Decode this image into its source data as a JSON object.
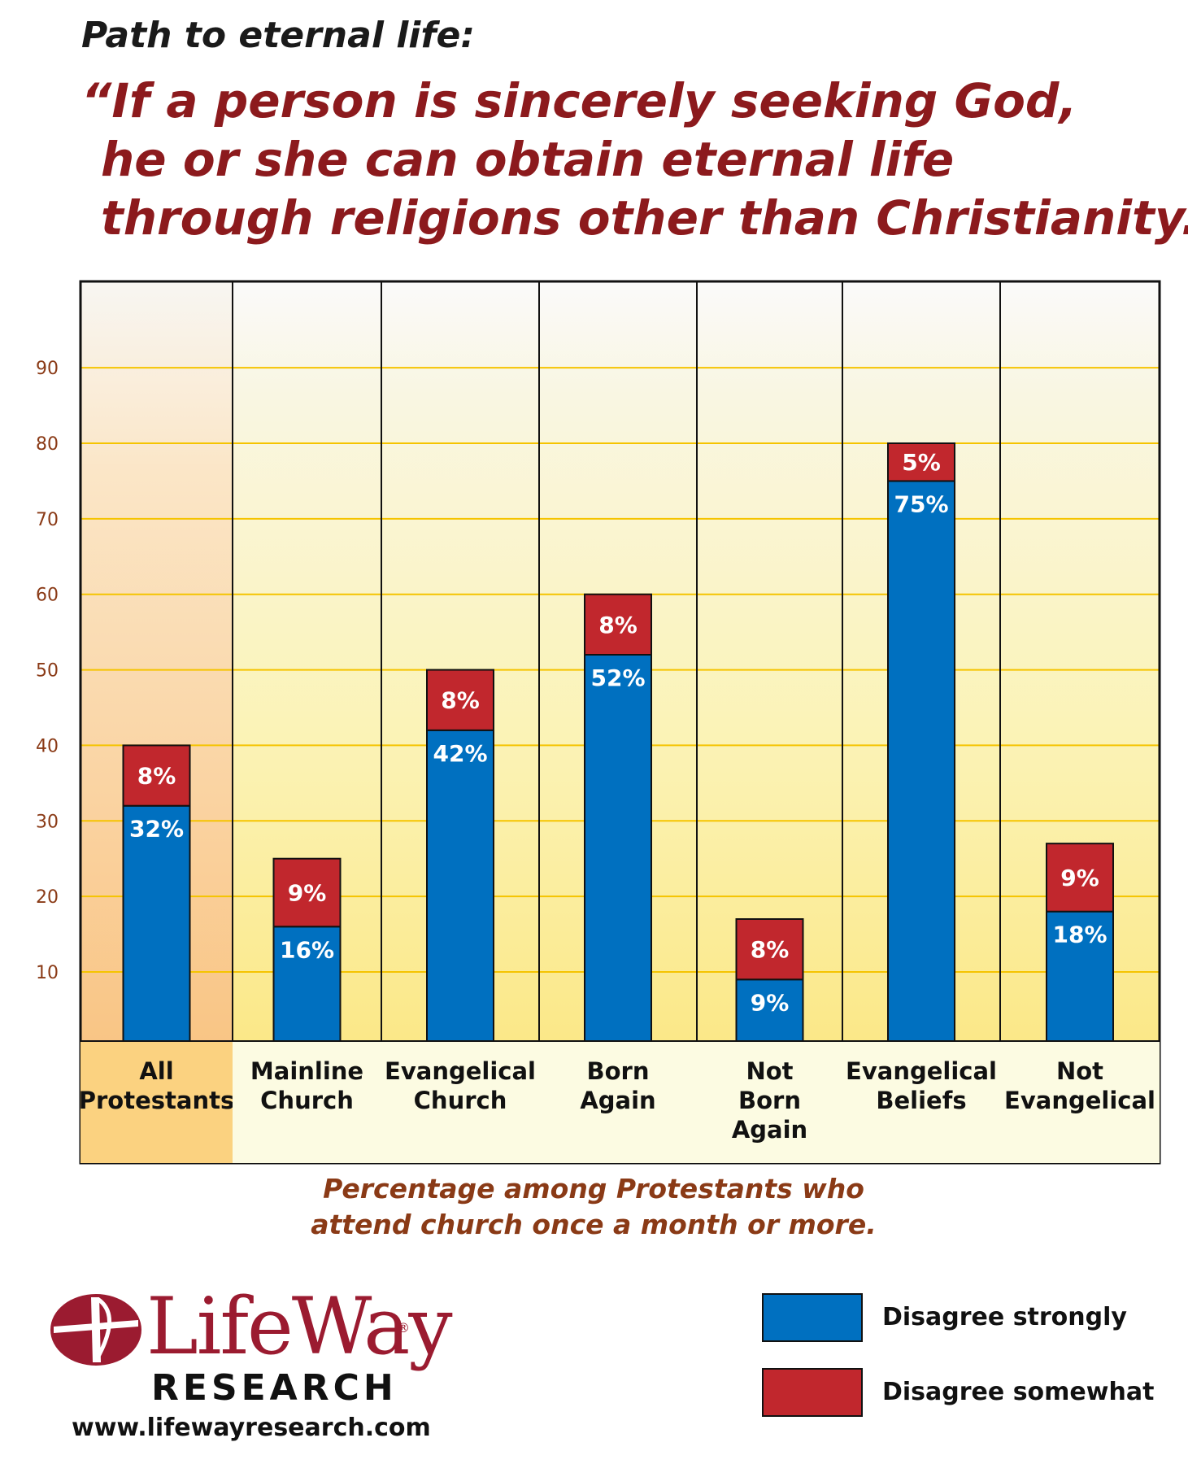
{
  "title": "Path to eternal life:",
  "quote_lines": [
    "“If a person is sincerely seeking God,",
    "he or she can obtain eternal life",
    "through religions other than Christianity.”"
  ],
  "subtitle_lines": [
    "Percentage among Protestants who",
    "attend church once a month or more."
  ],
  "logo": {
    "wordmark": "LifeWay",
    "registered": "®",
    "subtext": "RESEARCH",
    "url": "www.lifewayresearch.com"
  },
  "colors": {
    "disagree_strongly": "#0070c0",
    "disagree_somewhat": "#c1272d",
    "title_red": "#8c1a1d",
    "axis_tick": "#8a3a16",
    "gridline": "#f5c400"
  },
  "chart_data": {
    "type": "bar",
    "stacked": true,
    "title": "",
    "xlabel": "",
    "ylabel": "",
    "ylim": [
      0,
      100
    ],
    "yticks": [
      10,
      20,
      30,
      40,
      50,
      60,
      70,
      80,
      90
    ],
    "grid": true,
    "legend_position": "bottom-right",
    "categories": [
      [
        "All",
        "Protestants"
      ],
      [
        "Mainline",
        "Church"
      ],
      [
        "Evangelical",
        "Church"
      ],
      [
        "Born",
        "Again"
      ],
      [
        "Not",
        "Born",
        "Again"
      ],
      [
        "Evangelical",
        "Beliefs"
      ],
      [
        "Not",
        "Evangelical"
      ]
    ],
    "highlight_category": 0,
    "series": [
      {
        "name": "Disagree strongly",
        "values": [
          32,
          16,
          42,
          52,
          9,
          75,
          18
        ],
        "labels": [
          "32%",
          "16%",
          "42%",
          "52%",
          "9%",
          "75%",
          "18%"
        ]
      },
      {
        "name": "Disagree somewhat",
        "values": [
          8,
          9,
          8,
          8,
          8,
          5,
          9
        ],
        "labels": [
          "8%",
          "9%",
          "8%",
          "8%",
          "8%",
          "5%",
          "9%"
        ]
      }
    ]
  }
}
